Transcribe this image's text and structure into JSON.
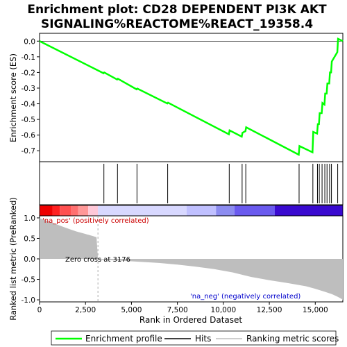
{
  "colors": {
    "enrichment_line": "#00ff00",
    "hits": "#000000",
    "metric_fill": "#bebebe",
    "pos_label": "#cc0000",
    "neg_label": "#0000cc",
    "panel_bg": "#ffffff",
    "frame": "#000000"
  },
  "chart_data": {
    "type": "line",
    "title_lines": [
      "Enrichment plot: CD28 DEPENDENT PI3K AKT",
      "SIGNALING%REACTOME%REACT_19358.4"
    ],
    "top_panel": {
      "ylabel": "Enrichment score (ES)",
      "ylim": [
        -0.77,
        0.05
      ],
      "yticks": [
        0.0,
        -0.1,
        -0.2,
        -0.3,
        -0.4,
        -0.5,
        -0.6,
        -0.7
      ],
      "ytick_labels": [
        "0.0",
        "-0.1",
        "-0.2",
        "-0.3",
        "-0.4",
        "-0.5",
        "-0.6",
        "-0.7"
      ],
      "es_profile": {
        "x": [
          0,
          3480,
          3520,
          4220,
          4260,
          5280,
          5320,
          6950,
          6990,
          10300,
          10340,
          11000,
          11040,
          11200,
          11240,
          14100,
          14140,
          14850,
          14890,
          15100,
          15140,
          15200,
          15240,
          15350,
          15390,
          15500,
          15540,
          15620,
          15660,
          15760,
          15800,
          15860,
          15900,
          16200,
          16240,
          16500
        ],
        "y": [
          0.0,
          -0.205,
          -0.2,
          -0.245,
          -0.24,
          -0.308,
          -0.303,
          -0.398,
          -0.393,
          -0.595,
          -0.57,
          -0.61,
          -0.585,
          -0.575,
          -0.55,
          -0.725,
          -0.67,
          -0.71,
          -0.58,
          -0.59,
          -0.53,
          -0.53,
          -0.46,
          -0.46,
          -0.395,
          -0.405,
          -0.335,
          -0.335,
          -0.27,
          -0.27,
          -0.2,
          -0.2,
          -0.13,
          -0.07,
          0.015,
          0.0
        ]
      }
    },
    "hits": {
      "x": [
        3500,
        4240,
        5300,
        6970,
        10320,
        11020,
        11220,
        14120,
        14870,
        15120,
        15220,
        15370,
        15520,
        15640,
        15780,
        15880,
        16220
      ]
    },
    "rank_bar": {
      "segments": [
        {
          "from": 0,
          "to": 700,
          "color": "#ee0000"
        },
        {
          "from": 700,
          "to": 1100,
          "color": "#ff2020"
        },
        {
          "from": 1100,
          "to": 1700,
          "color": "#ff5050"
        },
        {
          "from": 1700,
          "to": 2100,
          "color": "#ff7070"
        },
        {
          "from": 2100,
          "to": 2650,
          "color": "#ff9898"
        },
        {
          "from": 2650,
          "to": 3176,
          "color": "#ffc8d8"
        },
        {
          "from": 3176,
          "to": 8000,
          "color": "#d8d8ff"
        },
        {
          "from": 8000,
          "to": 9600,
          "color": "#c0c0ff"
        },
        {
          "from": 9600,
          "to": 10600,
          "color": "#8c8cf0"
        },
        {
          "from": 10600,
          "to": 12800,
          "color": "#6a5aee"
        },
        {
          "from": 12800,
          "to": 16500,
          "color": "#3a0ad0"
        }
      ]
    },
    "bottom_panel": {
      "ylabel": "Ranked list metric (PreRanked)",
      "xlabel": "Rank in Ordered Dataset",
      "xlim": [
        0,
        16500
      ],
      "ylim": [
        -1.05,
        1.05
      ],
      "xticks": [
        0,
        2500,
        5000,
        7500,
        10000,
        12500,
        15000
      ],
      "xtick_labels": [
        "0",
        "2,500",
        "5,000",
        "7,500",
        "10,000",
        "12,500",
        "15,000"
      ],
      "yticks": [
        1.0,
        0.5,
        0.0,
        -0.5,
        -1.0
      ],
      "ytick_labels": [
        "1.0",
        "0.5",
        "0.0",
        "-0.5",
        "-1.0"
      ],
      "metric_profile": {
        "x": [
          0,
          150,
          400,
          700,
          1000,
          1300,
          1600,
          2000,
          2400,
          2800,
          3100,
          3176,
          3300,
          5000,
          6500,
          7500,
          8500,
          9500,
          10500,
          11500,
          12500,
          13500,
          14500,
          15000,
          15500,
          15900,
          16200,
          16400,
          16500
        ],
        "y": [
          1.0,
          0.97,
          0.93,
          0.88,
          0.83,
          0.78,
          0.73,
          0.67,
          0.62,
          0.57,
          0.53,
          0.0,
          -0.02,
          -0.06,
          -0.1,
          -0.14,
          -0.19,
          -0.25,
          -0.33,
          -0.44,
          -0.52,
          -0.59,
          -0.67,
          -0.73,
          -0.8,
          -0.86,
          -0.92,
          -0.97,
          -1.0
        ]
      },
      "zero_cross_label": "Zero cross at 3176",
      "zero_cross_x": 3176,
      "pos_label": "'na_pos' (positively correlated)",
      "neg_label": "'na_neg' (negatively correlated)"
    },
    "legend": {
      "placement": "bottom",
      "items": [
        {
          "label": "Enrichment profile",
          "color": "#00ff00"
        },
        {
          "label": "Hits",
          "color": "#000000"
        },
        {
          "label": "Ranking metric scores",
          "color": "#bebebe"
        }
      ]
    }
  }
}
